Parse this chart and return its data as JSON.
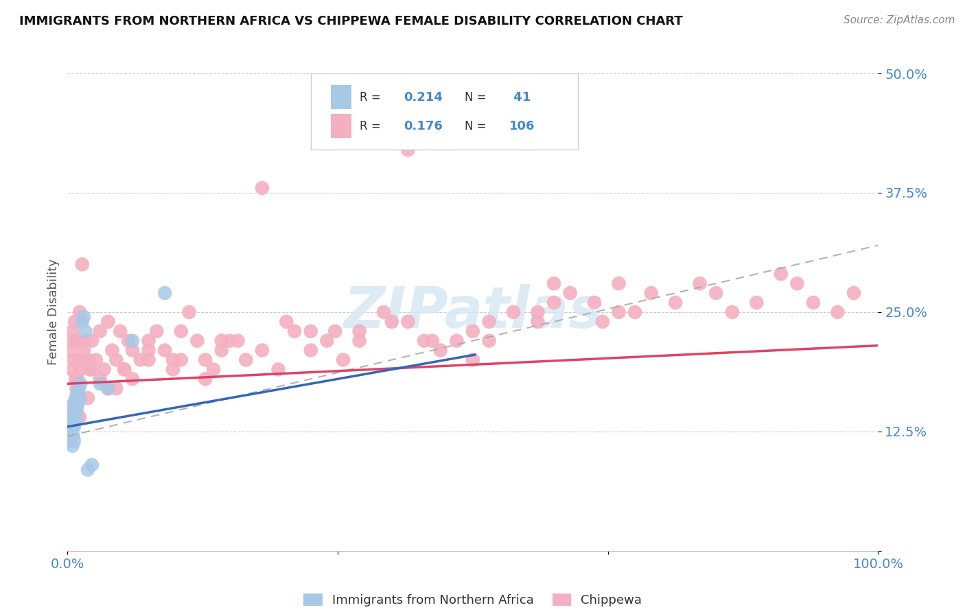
{
  "title": "IMMIGRANTS FROM NORTHERN AFRICA VS CHIPPEWA FEMALE DISABILITY CORRELATION CHART",
  "source_text": "Source: ZipAtlas.com",
  "ylabel": "Female Disability",
  "legend_label_blue": "Immigrants from Northern Africa",
  "legend_label_pink": "Chippewa",
  "R_blue": 0.214,
  "N_blue": 41,
  "R_pink": 0.176,
  "N_pink": 106,
  "xlim": [
    0.0,
    1.0
  ],
  "ylim": [
    0.0,
    0.5
  ],
  "yticks": [
    0.0,
    0.125,
    0.25,
    0.375,
    0.5
  ],
  "ytick_labels": [
    "",
    "12.5%",
    "25.0%",
    "37.5%",
    "50.0%"
  ],
  "title_color": "#111111",
  "axis_label_color": "#555555",
  "blue_dot_color": "#a8c8e8",
  "pink_dot_color": "#f4b0c0",
  "blue_line_color": "#3366bb",
  "pink_line_color": "#dd4466",
  "dash_line_color": "#aaaaaa",
  "grid_color": "#cccccc",
  "source_color": "#888888",
  "tick_color": "#4488cc",
  "watermark_color": "#d8e8f4",
  "blue_scatter_x": [
    0.002,
    0.003,
    0.003,
    0.003,
    0.004,
    0.004,
    0.004,
    0.005,
    0.005,
    0.005,
    0.006,
    0.006,
    0.006,
    0.007,
    0.007,
    0.007,
    0.008,
    0.008,
    0.008,
    0.009,
    0.009,
    0.01,
    0.01,
    0.011,
    0.011,
    0.012,
    0.012,
    0.013,
    0.013,
    0.014,
    0.015,
    0.016,
    0.018,
    0.02,
    0.022,
    0.025,
    0.03,
    0.04,
    0.05,
    0.08,
    0.12
  ],
  "blue_scatter_y": [
    0.135,
    0.125,
    0.14,
    0.115,
    0.13,
    0.12,
    0.115,
    0.14,
    0.13,
    0.12,
    0.145,
    0.13,
    0.11,
    0.14,
    0.13,
    0.12,
    0.155,
    0.13,
    0.115,
    0.155,
    0.14,
    0.16,
    0.145,
    0.155,
    0.14,
    0.165,
    0.15,
    0.165,
    0.155,
    0.17,
    0.16,
    0.175,
    0.24,
    0.245,
    0.23,
    0.085,
    0.09,
    0.175,
    0.17,
    0.22,
    0.27
  ],
  "pink_scatter_x": [
    0.003,
    0.005,
    0.006,
    0.007,
    0.008,
    0.009,
    0.01,
    0.011,
    0.012,
    0.014,
    0.015,
    0.016,
    0.018,
    0.02,
    0.022,
    0.025,
    0.028,
    0.03,
    0.035,
    0.04,
    0.045,
    0.05,
    0.055,
    0.06,
    0.065,
    0.07,
    0.075,
    0.08,
    0.09,
    0.1,
    0.11,
    0.12,
    0.13,
    0.14,
    0.15,
    0.16,
    0.17,
    0.18,
    0.19,
    0.2,
    0.22,
    0.24,
    0.26,
    0.28,
    0.3,
    0.32,
    0.34,
    0.36,
    0.38,
    0.4,
    0.42,
    0.44,
    0.46,
    0.48,
    0.5,
    0.52,
    0.55,
    0.58,
    0.6,
    0.62,
    0.65,
    0.68,
    0.7,
    0.72,
    0.75,
    0.78,
    0.8,
    0.82,
    0.85,
    0.88,
    0.9,
    0.92,
    0.95,
    0.97,
    0.015,
    0.025,
    0.04,
    0.06,
    0.08,
    0.1,
    0.13,
    0.17,
    0.21,
    0.27,
    0.33,
    0.39,
    0.45,
    0.52,
    0.6,
    0.68,
    0.005,
    0.012,
    0.019,
    0.028,
    0.05,
    0.07,
    0.1,
    0.14,
    0.19,
    0.24,
    0.3,
    0.36,
    0.42,
    0.5,
    0.58,
    0.66
  ],
  "pink_scatter_y": [
    0.21,
    0.19,
    0.23,
    0.22,
    0.2,
    0.24,
    0.18,
    0.17,
    0.22,
    0.2,
    0.25,
    0.19,
    0.3,
    0.21,
    0.22,
    0.2,
    0.19,
    0.22,
    0.2,
    0.23,
    0.19,
    0.24,
    0.21,
    0.2,
    0.23,
    0.19,
    0.22,
    0.21,
    0.2,
    0.22,
    0.23,
    0.21,
    0.2,
    0.23,
    0.25,
    0.22,
    0.2,
    0.19,
    0.21,
    0.22,
    0.2,
    0.38,
    0.19,
    0.23,
    0.21,
    0.22,
    0.2,
    0.23,
    0.44,
    0.24,
    0.42,
    0.22,
    0.21,
    0.22,
    0.2,
    0.22,
    0.25,
    0.24,
    0.28,
    0.27,
    0.26,
    0.28,
    0.25,
    0.27,
    0.26,
    0.28,
    0.27,
    0.25,
    0.26,
    0.29,
    0.28,
    0.26,
    0.25,
    0.27,
    0.14,
    0.16,
    0.18,
    0.17,
    0.18,
    0.2,
    0.19,
    0.18,
    0.22,
    0.24,
    0.23,
    0.25,
    0.22,
    0.24,
    0.26,
    0.25,
    0.15,
    0.18,
    0.2,
    0.19,
    0.17,
    0.19,
    0.21,
    0.2,
    0.22,
    0.21,
    0.23,
    0.22,
    0.24,
    0.23,
    0.25,
    0.24
  ],
  "blue_line_x0": 0.0,
  "blue_line_y0": 0.13,
  "blue_line_x1": 0.5,
  "blue_line_y1": 0.205,
  "pink_line_x0": 0.0,
  "pink_line_y0": 0.175,
  "pink_line_x1": 1.0,
  "pink_line_y1": 0.215,
  "dash_line_x0": 0.0,
  "dash_line_y0": 0.12,
  "dash_line_x1": 1.0,
  "dash_line_y1": 0.32
}
